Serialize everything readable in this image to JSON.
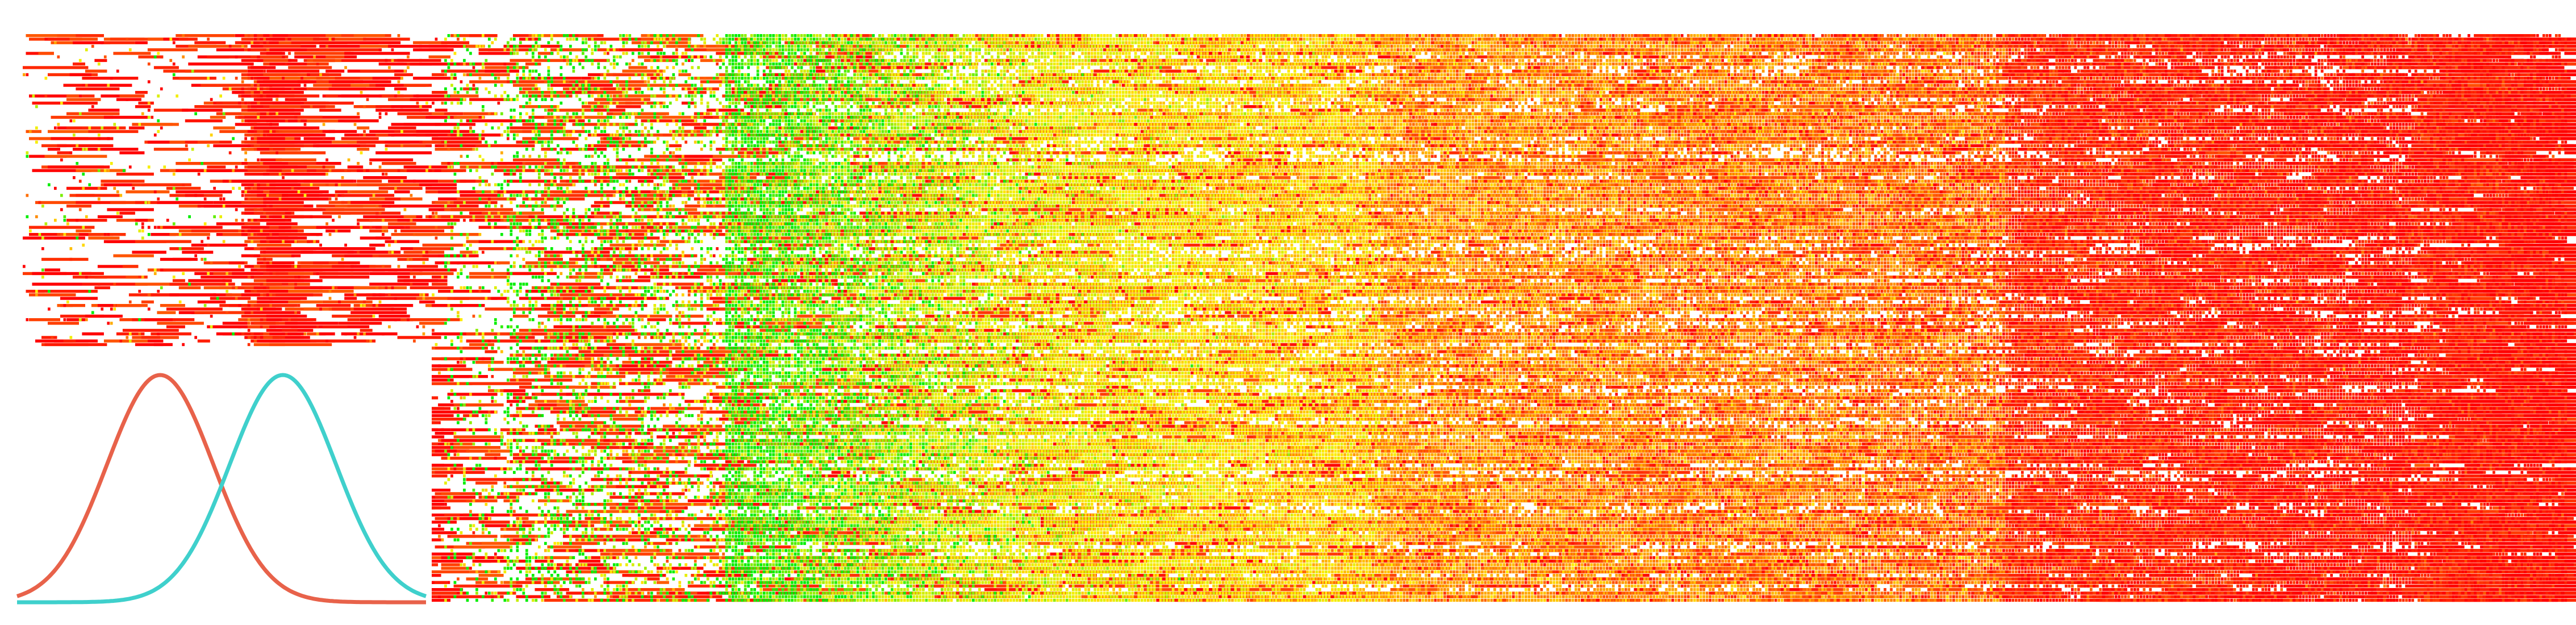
{
  "chart_data": {
    "type": "heatmap",
    "title": "",
    "xlabel": "",
    "ylabel": "",
    "grid": false,
    "color_scale": {
      "low": "#00ee00",
      "mid_low": "#ccee00",
      "mid": "#ffee00",
      "mid_high": "#ff9900",
      "high": "#ff0000"
    },
    "column_groups": [
      {
        "name": "",
        "count": 70,
        "fill": 0.08,
        "trend_start": 0.55,
        "trend_end": 0.75,
        "randomness": 0.5,
        "bar_share": 0.5
      },
      {
        "name": "",
        "count": 10,
        "fill": 0.4,
        "trend_start": 0.9,
        "trend_end": 0.95,
        "randomness": 0.15,
        "bar_share": 0.8
      },
      {
        "name": "",
        "count": 55,
        "fill": 0.12,
        "trend_start": 0.85,
        "trend_end": 0.9,
        "randomness": 0.2,
        "bar_share": 0.6
      },
      {
        "name": "",
        "count": 20,
        "fill": 0.18,
        "trend_start": 0.1,
        "trend_end": 0.3,
        "randomness": 0.45,
        "bar_share": 0.2
      },
      {
        "name": "",
        "count": 70,
        "fill": 0.35,
        "trend_start": 0.05,
        "trend_end": 0.3,
        "randomness": 0.3,
        "bar_share": 0.15
      },
      {
        "name": "",
        "count": 100,
        "fill": 0.85,
        "trend_start": 0.05,
        "trend_end": 0.4,
        "randomness": 0.15,
        "bar_share": 0.05
      },
      {
        "name": "",
        "count": 110,
        "fill": 0.9,
        "trend_start": 0.4,
        "trend_end": 0.6,
        "randomness": 0.12,
        "bar_share": 0.05
      },
      {
        "name": "",
        "count": 110,
        "fill": 0.92,
        "trend_start": 0.7,
        "trend_end": 0.78,
        "randomness": 0.1,
        "bar_share": 0.05
      },
      {
        "name": "",
        "count": 90,
        "fill": 0.9,
        "trend_start": 0.76,
        "trend_end": 0.82,
        "randomness": 0.1,
        "bar_share": 0.05
      },
      {
        "name": "",
        "count": 130,
        "fill": 0.85,
        "trend_start": 0.92,
        "trend_end": 0.97,
        "randomness": 0.06,
        "bar_share": 0.1
      },
      {
        "name": "",
        "count": 50,
        "fill": 0.75,
        "trend_start": 0.94,
        "trend_end": 0.98,
        "randomness": 0.05,
        "bar_share": 0.3
      }
    ],
    "row_count": 160,
    "legend": {
      "type": "density",
      "series": [
        {
          "name": "",
          "color": "#e8624a",
          "mean": 0.35,
          "sd": 0.13
        },
        {
          "name": "",
          "color": "#3fd0cc",
          "mean": 0.65,
          "sd": 0.13
        }
      ],
      "placement": "bottom-left"
    }
  }
}
